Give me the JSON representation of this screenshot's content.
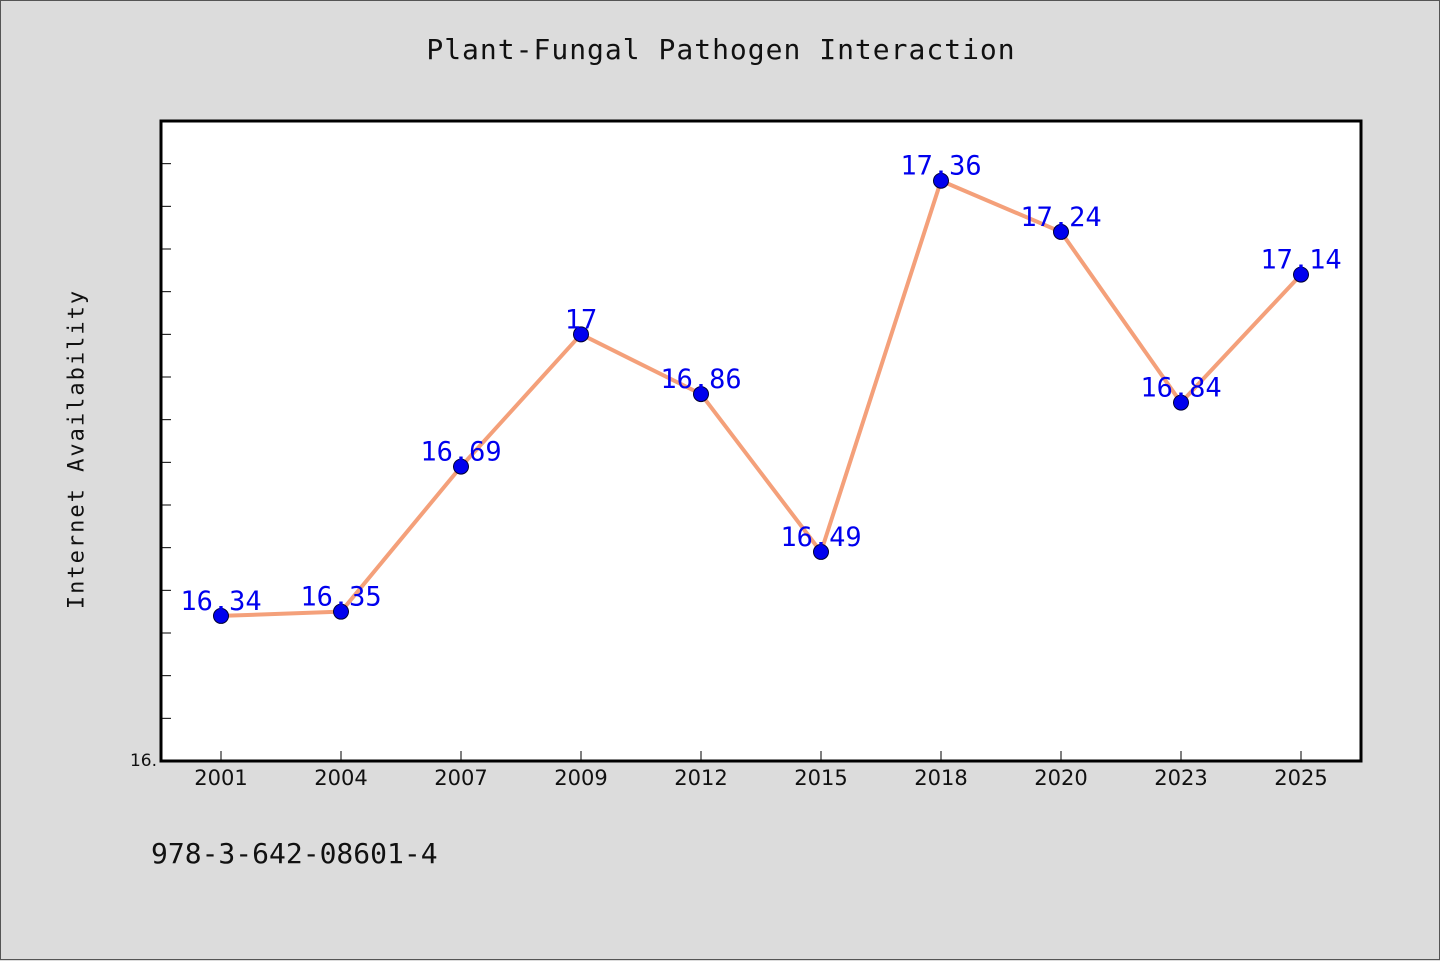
{
  "chart_data": {
    "type": "line",
    "title": "Plant-Fungal Pathogen Interaction",
    "xlabel": "",
    "ylabel": "Internet Availability",
    "categories": [
      "2001",
      "2004",
      "2007",
      "2009",
      "2012",
      "2015",
      "2018",
      "2020",
      "2023",
      "2025"
    ],
    "series": [
      {
        "values": [
          16.34,
          16.35,
          16.69,
          17,
          16.86,
          16.49,
          17.36,
          17.24,
          16.84,
          17.14
        ]
      }
    ],
    "data_labels": [
      "16.34",
      "16.35",
      "16.69",
      "17",
      "16.86",
      "16.49",
      "17.36",
      "17.24",
      "16.84",
      "17.14"
    ],
    "y_tick_labels": [
      "16."
    ],
    "ylim": [
      16.0,
      17.5
    ],
    "grid": false,
    "line_color": "#f4a07a",
    "marker_color": "#0000ee",
    "label_color": "#0000ee"
  },
  "footer": {
    "isbn": "978-3-642-08601-4"
  }
}
